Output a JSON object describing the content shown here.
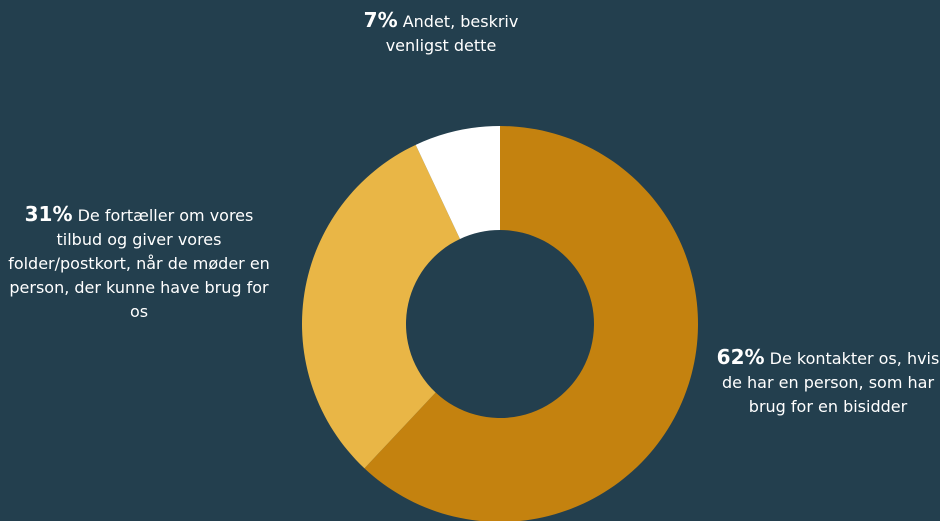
{
  "chart_data": {
    "type": "pie",
    "categories": [
      "De kontakter os, hvis de har en person, som har brug for en bisidder",
      "De fortæller om vores tilbud og giver vores folder/postkort, når de møder en person, der kunne have brug for os",
      "Andet, beskriv venligst dette"
    ],
    "values": [
      62,
      31,
      7
    ],
    "value_labels": [
      "62%",
      "31%",
      "7%"
    ],
    "colors": [
      "#c4820f",
      "#e9b646",
      "#ffffff"
    ]
  }
}
